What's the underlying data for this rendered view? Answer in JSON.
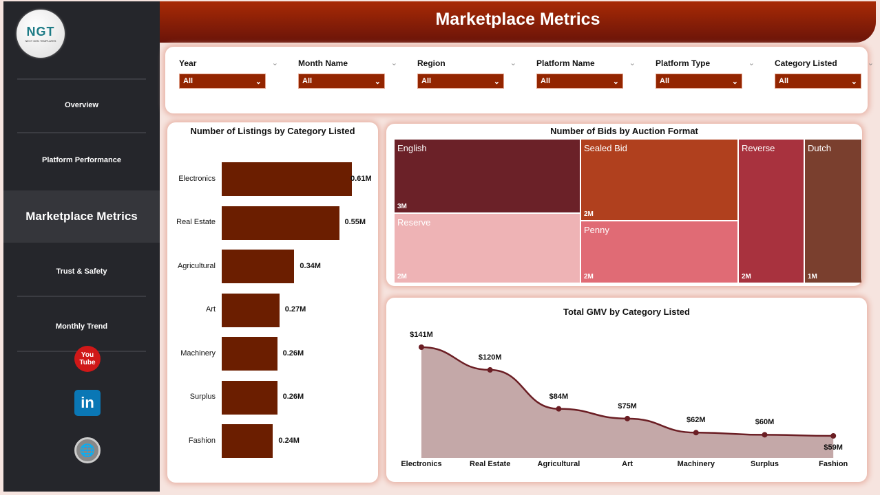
{
  "sidebar": {
    "logo_text": "NGT",
    "logo_sub": "NEXT GEN TEMPLATES",
    "items": [
      {
        "label": "Overview"
      },
      {
        "label": "Platform Performance"
      },
      {
        "label": "Marketplace Metrics",
        "active": true
      },
      {
        "label": "Trust & Safety"
      },
      {
        "label": "Monthly Trend"
      }
    ],
    "social": [
      "youtube-icon",
      "linkedin-icon",
      "website-icon"
    ]
  },
  "header": {
    "title": "Marketplace Metrics"
  },
  "filters": [
    {
      "label": "Year",
      "value": "All"
    },
    {
      "label": "Month Name",
      "value": "All"
    },
    {
      "label": "Region",
      "value": "All"
    },
    {
      "label": "Platform Name",
      "value": "All"
    },
    {
      "label": "Platform Type",
      "value": "All"
    },
    {
      "label": "Category Listed",
      "value": "All"
    }
  ],
  "colors": {
    "accent": "#932500",
    "bar": "#6b1e00",
    "header": "#a82a05",
    "sidebar": "#25262b",
    "line": "#6b1e24",
    "area": "#c4a8a8"
  },
  "chart_data": [
    {
      "type": "bar",
      "title": "Number of Listings by Category Listed",
      "orientation": "horizontal",
      "categories": [
        "Electronics",
        "Real Estate",
        "Agricultural",
        "Art",
        "Machinery",
        "Surplus",
        "Fashion"
      ],
      "values": [
        0.61,
        0.55,
        0.34,
        0.27,
        0.26,
        0.26,
        0.24
      ],
      "labels": [
        "0.61M",
        "0.55M",
        "0.34M",
        "0.27M",
        "0.26M",
        "0.26M",
        "0.24M"
      ],
      "unit": "M"
    },
    {
      "type": "treemap",
      "title": "Number of Bids by Auction Format",
      "items": [
        {
          "name": "English",
          "label": "3M",
          "color": "#6b2128"
        },
        {
          "name": "Sealed Bid",
          "label": "2M",
          "color": "#b0401e"
        },
        {
          "name": "Reserve",
          "label": "2M",
          "color": "#eeb3b5"
        },
        {
          "name": "Penny",
          "label": "2M",
          "color": "#e06b75"
        },
        {
          "name": "Reverse",
          "label": "2M",
          "color": "#a8323e"
        },
        {
          "name": "Dutch",
          "label": "1M",
          "color": "#7a3f2e"
        }
      ]
    },
    {
      "type": "area",
      "title": "Total GMV by Category Listed",
      "categories": [
        "Electronics",
        "Real Estate",
        "Agricultural",
        "Art",
        "Machinery",
        "Surplus",
        "Fashion"
      ],
      "values": [
        141,
        120,
        84,
        75,
        62,
        60,
        59
      ],
      "labels": [
        "$141M",
        "$120M",
        "$84M",
        "$75M",
        "$62M",
        "$60M",
        "$59M"
      ],
      "unit": "$M"
    }
  ]
}
